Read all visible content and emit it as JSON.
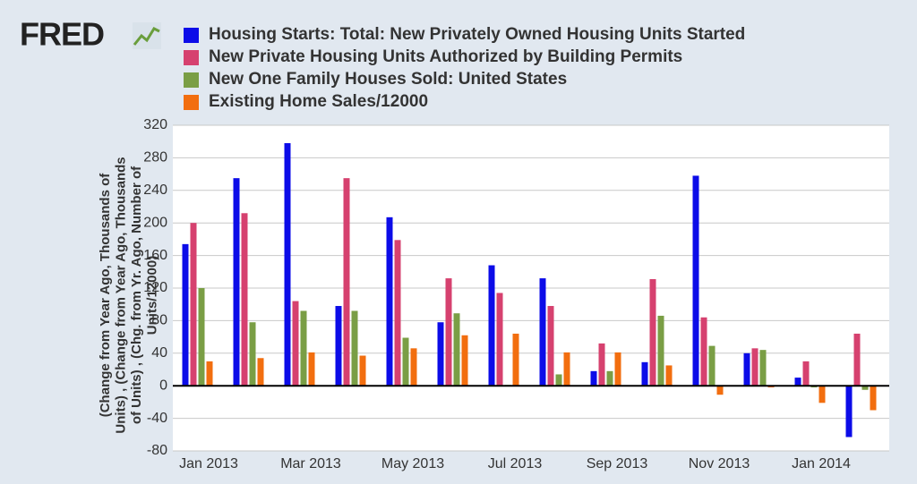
{
  "logo": "FRED",
  "chart_data": {
    "type": "bar",
    "ylabel": [
      "(Change from Year Ago, Thousands of",
      "Units) , (Change from Year Ago, Thousands",
      "of Units) , (Chg. from Yr. Ago, Number of",
      "Units/12000)"
    ],
    "categories": [
      "Jan 2013",
      null,
      "Mar 2013",
      null,
      "May 2013",
      null,
      "Jul 2013",
      null,
      "Sep 2013",
      null,
      "Nov 2013",
      null,
      "Jan 2014",
      null
    ],
    "series": [
      {
        "name": "Housing Starts: Total: New Privately Owned Housing Units Started",
        "color": "#0c0ce8",
        "values": [
          174,
          255,
          298,
          98,
          207,
          78,
          148,
          132,
          18,
          29,
          258,
          40,
          10,
          -63
        ]
      },
      {
        "name": "New Private Housing Units Authorized by Building Permits",
        "color": "#d6416f",
        "values": [
          200,
          212,
          104,
          255,
          179,
          132,
          114,
          98,
          52,
          131,
          84,
          46,
          30,
          64
        ]
      },
      {
        "name": "New One Family Houses Sold: United States",
        "color": "#7a9e45",
        "values": [
          120,
          78,
          92,
          92,
          59,
          89,
          1,
          14,
          18,
          86,
          49,
          44,
          -2,
          -5
        ]
      },
      {
        "name": "Existing Home Sales/12000",
        "color": "#f26e0f",
        "values": [
          30,
          34,
          41,
          37,
          46,
          62,
          64,
          41,
          41,
          25,
          -11,
          -2,
          -21,
          -30
        ]
      }
    ],
    "ylim": [
      -80,
      320
    ],
    "yticks": [
      -80,
      -40,
      0,
      40,
      80,
      120,
      160,
      200,
      240,
      280,
      320
    ],
    "grid": true
  }
}
